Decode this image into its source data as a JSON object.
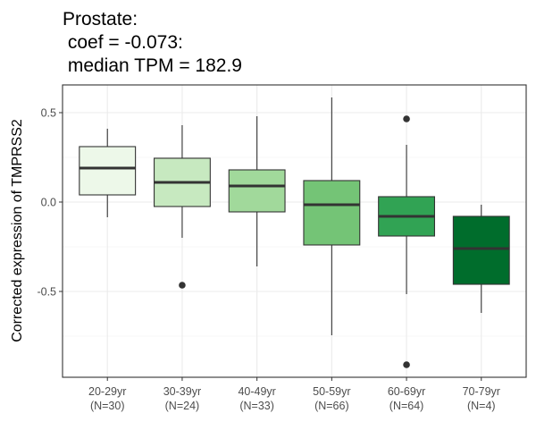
{
  "chart_data": {
    "type": "boxplot",
    "title": [
      "Prostate:",
      " coef = -0.073:",
      " median TPM = 182.9"
    ],
    "ylabel": "Corrected expression of TMPRSS2",
    "categories": [
      "20-29yr",
      "30-39yr",
      "40-49yr",
      "50-59yr",
      "60-69yr",
      "70-79yr"
    ],
    "category_counts": [
      "(N=30)",
      "(N=24)",
      "(N=33)",
      "(N=66)",
      "(N=64)",
      "(N=4)"
    ],
    "colors": [
      "#edf8e9",
      "#c7e9c0",
      "#a1d99b",
      "#74c476",
      "#31a354",
      "#006d2c"
    ],
    "whisker_low": [
      -0.085,
      -0.2,
      -0.36,
      -0.745,
      -0.515,
      -0.62
    ],
    "q1": [
      0.04,
      -0.025,
      -0.055,
      -0.24,
      -0.19,
      -0.46
    ],
    "median": [
      0.19,
      0.11,
      0.09,
      -0.015,
      -0.08,
      -0.26
    ],
    "q3": [
      0.31,
      0.245,
      0.18,
      0.12,
      0.03,
      -0.08
    ],
    "whisker_high": [
      0.41,
      0.43,
      0.48,
      0.585,
      0.32,
      -0.015
    ],
    "outliers": [
      [],
      [
        -0.465
      ],
      [],
      [],
      [
        0.465,
        -0.91
      ],
      []
    ],
    "ylim": [
      -0.98,
      0.655
    ],
    "yticks": [
      0.5,
      {
        "value": 0,
        "label": "0.0"
      },
      -0.5
    ],
    "y_minor_grid": [
      0.25,
      -0.25,
      -0.75
    ],
    "grid": true
  }
}
